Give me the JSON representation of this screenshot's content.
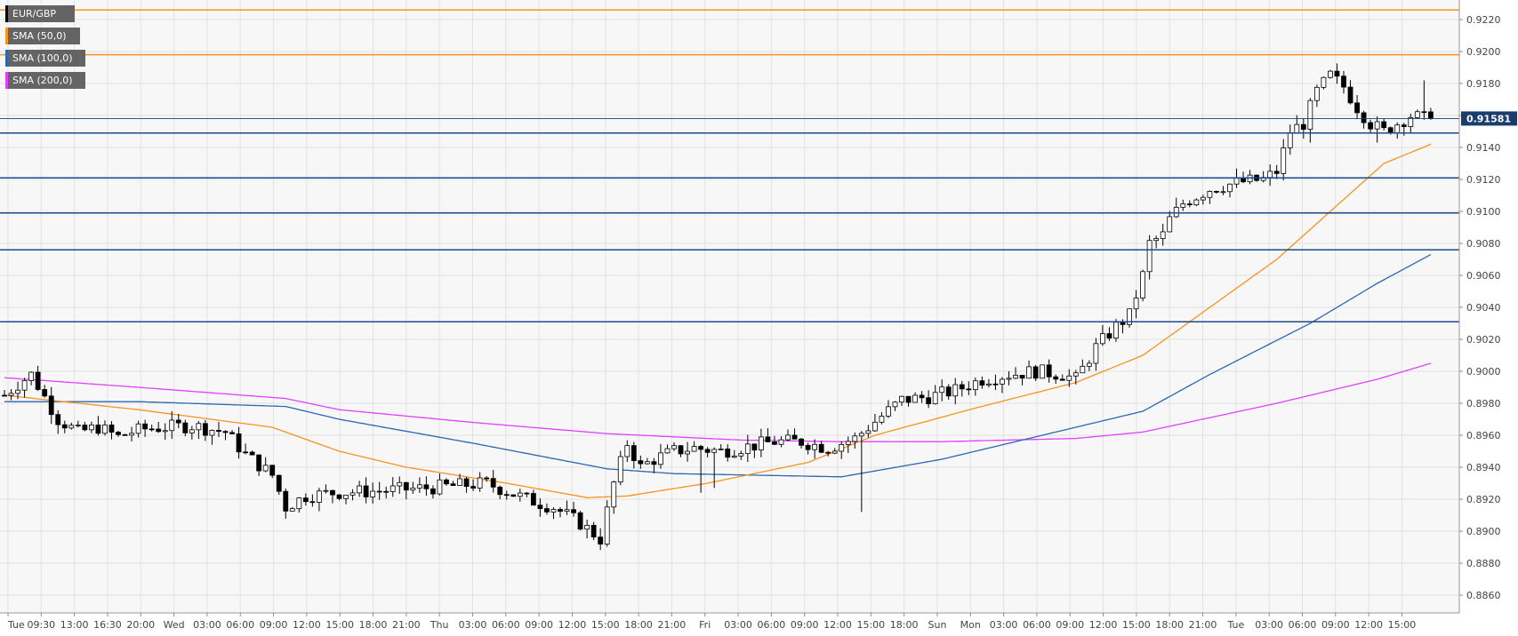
{
  "chart_data": {
    "type": "candlestick",
    "symbol": "EUR/GBP",
    "last_price": "0.91581",
    "ylim": [
      0.885,
      0.923
    ],
    "y_ticks": [
      "0.9220",
      "0.9200",
      "0.9180",
      "0.9160",
      "0.9140",
      "0.9120",
      "0.9100",
      "0.9080",
      "0.9060",
      "0.9040",
      "0.9020",
      "0.9000",
      "0.8980",
      "0.8960",
      "0.8940",
      "0.8920",
      "0.8900",
      "0.8880",
      "0.8860"
    ],
    "x_ticks": [
      "Tue",
      "09:30",
      "13:00",
      "16:30",
      "20:00",
      "Wed",
      "03:00",
      "06:00",
      "09:00",
      "12:00",
      "15:00",
      "18:00",
      "21:00",
      "Thu",
      "03:00",
      "06:00",
      "09:00",
      "12:00",
      "15:00",
      "18:00",
      "21:00",
      "Fri",
      "03:00",
      "06:00",
      "09:00",
      "12:00",
      "15:00",
      "18:00",
      "Sun",
      "Mon",
      "03:00",
      "06:00",
      "09:00",
      "12:00",
      "15:00",
      "18:00",
      "21:00",
      "Tue",
      "03:00",
      "06:00",
      "09:00",
      "12:00",
      "15:00"
    ],
    "legend": [
      {
        "label": "EUR/GBP",
        "color": "#000000"
      },
      {
        "label": "SMA (50,0)",
        "color": "#f7931e"
      },
      {
        "label": "SMA (100,0)",
        "color": "#2b66b0"
      },
      {
        "label": "SMA (200,0)",
        "color": "#e040fb"
      }
    ],
    "resistance_levels": [
      0.9226,
      0.9198
    ],
    "support_levels": [
      0.9149,
      0.9121,
      0.9099,
      0.9076,
      0.9031
    ],
    "price_line": 0.91581,
    "anchors": [
      [
        0,
        0.8985
      ],
      [
        2,
        0.8992
      ],
      [
        4,
        0.8998
      ],
      [
        8,
        0.897
      ],
      [
        11,
        0.8962
      ],
      [
        14,
        0.8965
      ],
      [
        17,
        0.8959
      ],
      [
        19,
        0.8962
      ],
      [
        21,
        0.8964
      ],
      [
        24,
        0.8965
      ],
      [
        28,
        0.8966
      ],
      [
        33,
        0.8962
      ],
      [
        36,
        0.8948
      ],
      [
        40,
        0.8935
      ],
      [
        42,
        0.8915
      ],
      [
        45,
        0.8922
      ],
      [
        49,
        0.8924
      ],
      [
        55,
        0.8925
      ],
      [
        63,
        0.8927
      ],
      [
        72,
        0.893
      ],
      [
        78,
        0.892
      ],
      [
        82,
        0.8915
      ],
      [
        86,
        0.8905
      ],
      [
        89,
        0.8895
      ],
      [
        91,
        0.893
      ],
      [
        93,
        0.8955
      ],
      [
        95,
        0.894
      ],
      [
        97,
        0.8945
      ],
      [
        100,
        0.895
      ],
      [
        103,
        0.8952
      ],
      [
        107,
        0.895
      ],
      [
        111,
        0.8953
      ],
      [
        115,
        0.8956
      ],
      [
        119,
        0.8956
      ],
      [
        123,
        0.8952
      ],
      [
        127,
        0.8958
      ],
      [
        131,
        0.8972
      ],
      [
        134,
        0.8982
      ],
      [
        138,
        0.8984
      ],
      [
        142,
        0.8988
      ],
      [
        146,
        0.8995
      ],
      [
        150,
        0.8998
      ],
      [
        154,
        0.9
      ],
      [
        158,
        0.8998
      ],
      [
        160,
        0.8995
      ],
      [
        163,
        0.9015
      ],
      [
        166,
        0.9028
      ],
      [
        168,
        0.9035
      ],
      [
        170,
        0.906
      ],
      [
        171,
        0.908
      ],
      [
        173,
        0.9085
      ],
      [
        174,
        0.9095
      ],
      [
        176,
        0.9105
      ],
      [
        180,
        0.9114
      ],
      [
        184,
        0.9118
      ],
      [
        188,
        0.912
      ],
      [
        190,
        0.9125
      ],
      [
        192,
        0.915
      ],
      [
        194,
        0.9155
      ],
      [
        196,
        0.9175
      ],
      [
        198,
        0.9185
      ],
      [
        200,
        0.9178
      ],
      [
        202,
        0.9165
      ],
      [
        204,
        0.9155
      ],
      [
        206,
        0.915
      ],
      [
        208,
        0.9155
      ],
      [
        210,
        0.916
      ],
      [
        212,
        0.9158
      ],
      [
        213,
        0.9158
      ]
    ],
    "sma50": [
      [
        0,
        0.8985
      ],
      [
        20,
        0.8976
      ],
      [
        40,
        0.8965
      ],
      [
        50,
        0.895
      ],
      [
        60,
        0.894
      ],
      [
        75,
        0.893
      ],
      [
        87,
        0.8921
      ],
      [
        93,
        0.8922
      ],
      [
        105,
        0.893
      ],
      [
        120,
        0.8943
      ],
      [
        130,
        0.896
      ],
      [
        145,
        0.8977
      ],
      [
        160,
        0.8993
      ],
      [
        170,
        0.901
      ],
      [
        180,
        0.904
      ],
      [
        190,
        0.907
      ],
      [
        198,
        0.91
      ],
      [
        206,
        0.913
      ],
      [
        213,
        0.9142
      ]
    ],
    "sma100": [
      [
        0,
        0.8981
      ],
      [
        20,
        0.8981
      ],
      [
        42,
        0.8978
      ],
      [
        50,
        0.897
      ],
      [
        70,
        0.8955
      ],
      [
        90,
        0.8939
      ],
      [
        100,
        0.8936
      ],
      [
        125,
        0.8934
      ],
      [
        140,
        0.8945
      ],
      [
        160,
        0.8965
      ],
      [
        170,
        0.8975
      ],
      [
        180,
        0.8998
      ],
      [
        195,
        0.903
      ],
      [
        205,
        0.9055
      ],
      [
        213,
        0.9073
      ]
    ],
    "sma200": [
      [
        0,
        0.8996
      ],
      [
        20,
        0.899
      ],
      [
        42,
        0.8983
      ],
      [
        50,
        0.8976
      ],
      [
        70,
        0.8968
      ],
      [
        90,
        0.8961
      ],
      [
        110,
        0.8957
      ],
      [
        125,
        0.8956
      ],
      [
        140,
        0.8956
      ],
      [
        160,
        0.8958
      ],
      [
        170,
        0.8962
      ],
      [
        190,
        0.898
      ],
      [
        205,
        0.8995
      ],
      [
        213,
        0.9005
      ]
    ],
    "spikes": [
      [
        104,
        0.8924
      ],
      [
        106,
        0.8927
      ],
      [
        128,
        0.8912
      ],
      [
        195,
        0.9143
      ],
      [
        205,
        0.9143
      ],
      [
        212,
        0.9182
      ]
    ]
  }
}
